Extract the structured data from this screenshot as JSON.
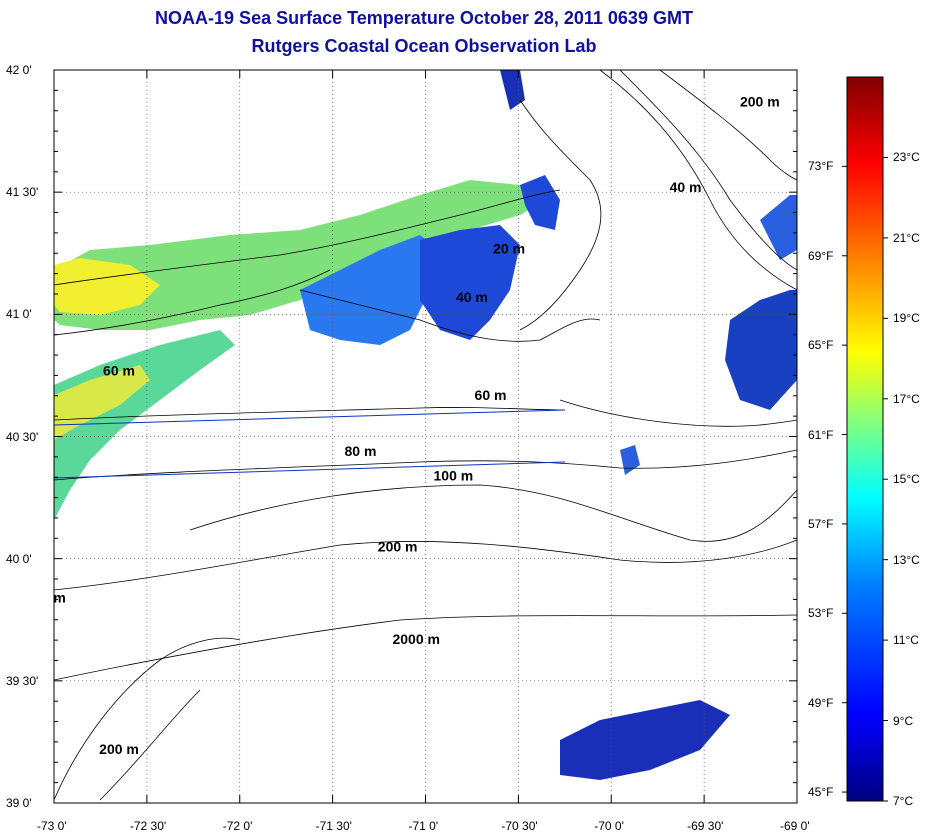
{
  "title": {
    "line1": "NOAA-19 Sea Surface Temperature October 28, 2011 0639 GMT",
    "line2": "Rutgers Coastal Ocean Observation Lab"
  },
  "map": {
    "lon_range": [
      -73,
      -69
    ],
    "lat_range": [
      39,
      42
    ],
    "lon_ticks": [
      "-73 0'",
      "-72 30'",
      "-72 0'",
      "-71 30'",
      "-71 0'",
      "-70 30'",
      "-70 0'",
      "-69 30'",
      "-69 0'"
    ],
    "lat_ticks": [
      "42 0'",
      "41 30'",
      "41 0'",
      "40 30'",
      "40 0'",
      "39 30'",
      "39 0'"
    ],
    "grid": true,
    "isobath_labels": [
      {
        "text": "200 m",
        "lon": -69.2,
        "lat": 41.85
      },
      {
        "text": "40 m",
        "lon": -69.6,
        "lat": 41.5
      },
      {
        "text": "20 m",
        "lon": -70.55,
        "lat": 41.25
      },
      {
        "text": "40 m",
        "lon": -70.75,
        "lat": 41.05
      },
      {
        "text": "60 m",
        "lon": -72.65,
        "lat": 40.75
      },
      {
        "text": "60 m",
        "lon": -70.65,
        "lat": 40.65
      },
      {
        "text": "80 m",
        "lon": -71.35,
        "lat": 40.42
      },
      {
        "text": "100 m",
        "lon": -70.85,
        "lat": 40.32
      },
      {
        "text": "200 m",
        "lon": -71.15,
        "lat": 40.03
      },
      {
        "text": "2000 m",
        "lon": -71.05,
        "lat": 39.65
      },
      {
        "text": "200 m",
        "lon": -72.65,
        "lat": 39.2
      },
      {
        "text": "m",
        "lon": -72.97,
        "lat": 39.82
      }
    ]
  },
  "colorbar": {
    "celsius_labels": [
      "23°C",
      "21°C",
      "19°C",
      "17°C",
      "15°C",
      "13°C",
      "11°C",
      "9°C",
      "7°C"
    ],
    "fahrenheit_labels": [
      "73°F",
      "69°F",
      "65°F",
      "61°F",
      "57°F",
      "53°F",
      "49°F",
      "45°F"
    ],
    "celsius_range": [
      7,
      25
    ],
    "colors": [
      "#000080",
      "#0000ff",
      "#0080ff",
      "#00ffff",
      "#80ff80",
      "#ffff00",
      "#ff8000",
      "#ff0000",
      "#800000"
    ]
  }
}
